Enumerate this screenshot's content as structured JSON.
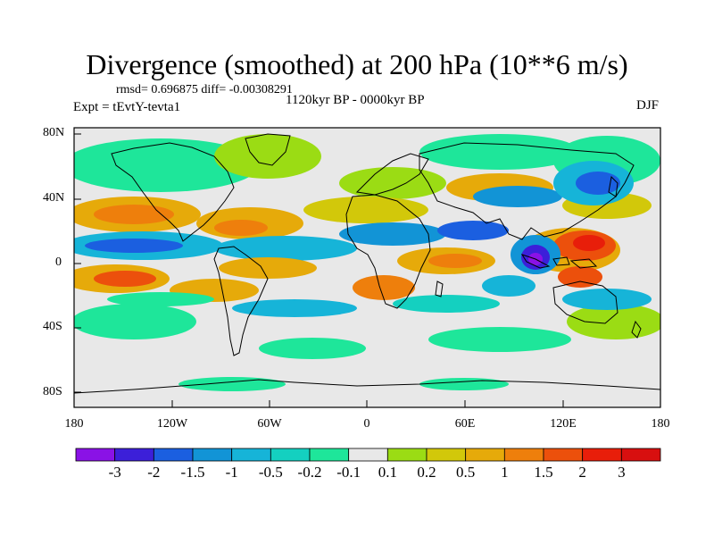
{
  "plot": {
    "title": "Divergence (smoothed) at 200 hPa (10**6 m/s)",
    "stats": "rmsd= 0.696875 diff= -0.00308291",
    "experiment": "Expt = tEvtY-tevta1",
    "period": "1120kyr BP - 0000kyr BP",
    "season": "DJF"
  },
  "axes": {
    "lat_labels": [
      "80N",
      "40N",
      "0",
      "40S",
      "80S"
    ],
    "lon_labels": [
      "180",
      "120W",
      "60W",
      "0",
      "60E",
      "120E",
      "180"
    ]
  },
  "colorbar": {
    "labels": [
      "-3",
      "-2",
      "-1.5",
      "-1",
      "-0.5",
      "-0.2",
      "-0.1",
      "0.1",
      "0.2",
      "0.5",
      "1",
      "1.5",
      "2",
      "3"
    ],
    "colors": [
      "#8a12e6",
      "#3c1fd9",
      "#1b5fe0",
      "#1294d6",
      "#16b4d8",
      "#14d0c0",
      "#1ee69a",
      "#e8e8e8",
      "#9bdc14",
      "#d2c80a",
      "#e6aa0a",
      "#ee7f0c",
      "#ec500c",
      "#e81e0a",
      "#d80f0f"
    ]
  },
  "map_legend": {
    "colors": {
      "background": "#e8e8e8",
      "coast": "#000000"
    }
  }
}
